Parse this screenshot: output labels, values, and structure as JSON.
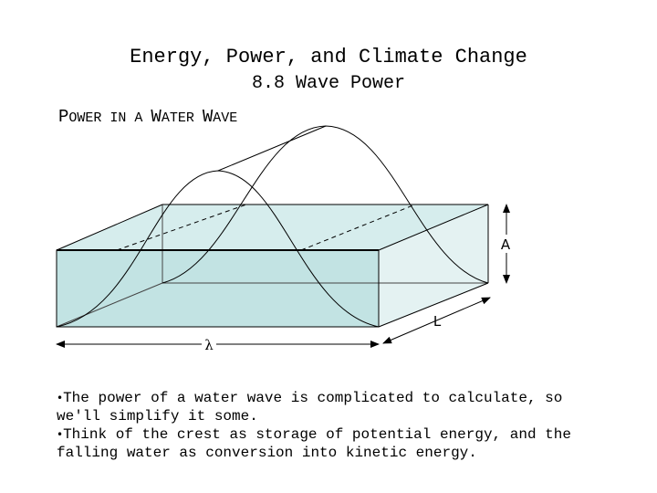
{
  "title": "Energy, Power, and Climate Change",
  "subtitle": "8.8 Wave Power",
  "section": {
    "parts": [
      {
        "text": "P",
        "size": "big"
      },
      {
        "text": "OWER IN A ",
        "size": "small"
      },
      {
        "text": "W",
        "size": "big"
      },
      {
        "text": "ATER ",
        "size": "small"
      },
      {
        "text": "W",
        "size": "big"
      },
      {
        "text": "AVE",
        "size": "small"
      }
    ]
  },
  "diagram": {
    "label_amplitude": "A",
    "label_length": "L",
    "label_wavelength": "λ",
    "colors": {
      "water_front": "#c2e3e3",
      "water_top": "#d6eded",
      "water_side": "#e4f2f2",
      "stroke": "#000000"
    }
  },
  "bullets": [
    {
      "marker": "•",
      "text": "The power of a water wave is complicated to calculate, so we'll simplify it some."
    },
    {
      "marker": "•",
      "text": "Think of the crest as storage of potential energy, and the falling water as conversion into kinetic energy."
    }
  ]
}
